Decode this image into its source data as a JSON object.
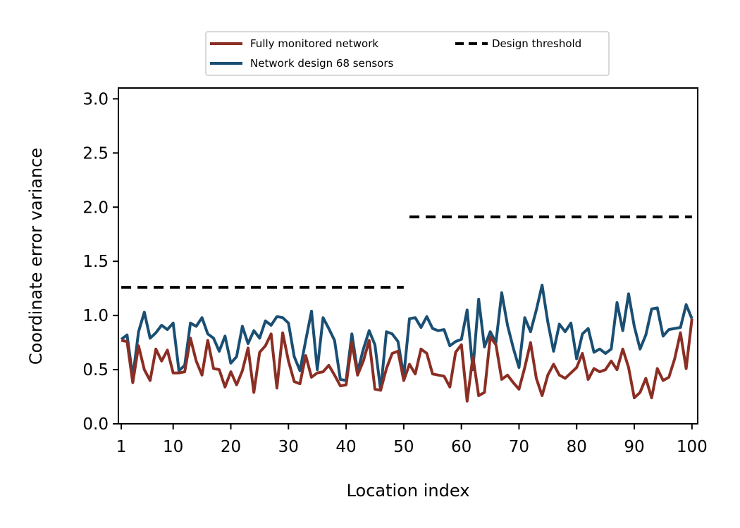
{
  "chart_data": {
    "type": "line",
    "xlabel": "Location index",
    "ylabel": "Coordinate error variance",
    "xlim": [
      0.5,
      101
    ],
    "ylim": [
      0.0,
      3.1
    ],
    "xticks": [
      1,
      10,
      20,
      30,
      40,
      50,
      60,
      70,
      80,
      90,
      100
    ],
    "yticks": [
      0.0,
      0.5,
      1.0,
      1.5,
      2.0,
      2.5,
      3.0
    ],
    "ytick_labels": [
      "0.0",
      "0.5",
      "1.0",
      "1.5",
      "2.0",
      "2.5",
      "3.0"
    ],
    "grid": false,
    "legend_position": "top-center, above plot",
    "x": [
      1,
      2,
      3,
      4,
      5,
      6,
      7,
      8,
      9,
      10,
      11,
      12,
      13,
      14,
      15,
      16,
      17,
      18,
      19,
      20,
      21,
      22,
      23,
      24,
      25,
      26,
      27,
      28,
      29,
      30,
      31,
      32,
      33,
      34,
      35,
      36,
      37,
      38,
      39,
      40,
      41,
      42,
      43,
      44,
      45,
      46,
      47,
      48,
      49,
      50,
      51,
      52,
      53,
      54,
      55,
      56,
      57,
      58,
      59,
      60,
      61,
      62,
      63,
      64,
      65,
      66,
      67,
      68,
      69,
      70,
      71,
      72,
      73,
      74,
      75,
      76,
      77,
      78,
      79,
      80,
      81,
      82,
      83,
      84,
      85,
      86,
      87,
      88,
      89,
      90,
      91,
      92,
      93,
      94,
      95,
      96,
      97,
      98,
      99,
      100
    ],
    "series": [
      {
        "name": "Fully monitored network",
        "color": "#8b2e24",
        "style": "solid",
        "values": [
          0.77,
          0.76,
          0.38,
          0.72,
          0.5,
          0.4,
          0.69,
          0.58,
          0.68,
          0.47,
          0.47,
          0.48,
          0.79,
          0.58,
          0.45,
          0.77,
          0.51,
          0.5,
          0.34,
          0.48,
          0.36,
          0.49,
          0.7,
          0.29,
          0.66,
          0.72,
          0.83,
          0.33,
          0.84,
          0.58,
          0.39,
          0.37,
          0.63,
          0.43,
          0.47,
          0.48,
          0.54,
          0.45,
          0.35,
          0.36,
          0.75,
          0.45,
          0.58,
          0.77,
          0.32,
          0.31,
          0.51,
          0.65,
          0.67,
          0.4,
          0.55,
          0.46,
          0.69,
          0.65,
          0.46,
          0.45,
          0.44,
          0.34,
          0.66,
          0.73,
          0.21,
          0.62,
          0.26,
          0.29,
          0.8,
          0.73,
          0.41,
          0.45,
          0.38,
          0.32,
          0.52,
          0.75,
          0.42,
          0.26,
          0.45,
          0.55,
          0.45,
          0.42,
          0.47,
          0.52,
          0.65,
          0.41,
          0.51,
          0.48,
          0.5,
          0.58,
          0.5,
          0.69,
          0.52,
          0.24,
          0.29,
          0.42,
          0.24,
          0.51,
          0.4,
          0.43,
          0.6,
          0.84,
          0.51,
          0.97
        ]
      },
      {
        "name": "Network design 68 sensors",
        "color": "#1a4f73",
        "style": "solid",
        "values": [
          0.78,
          0.82,
          0.43,
          0.85,
          1.03,
          0.79,
          0.84,
          0.91,
          0.87,
          0.93,
          0.49,
          0.54,
          0.93,
          0.9,
          0.98,
          0.83,
          0.79,
          0.67,
          0.81,
          0.56,
          0.62,
          0.9,
          0.74,
          0.86,
          0.79,
          0.95,
          0.91,
          0.99,
          0.98,
          0.93,
          0.62,
          0.49,
          0.77,
          1.04,
          0.5,
          0.98,
          0.88,
          0.77,
          0.41,
          0.4,
          0.83,
          0.48,
          0.69,
          0.86,
          0.73,
          0.31,
          0.85,
          0.83,
          0.76,
          0.44,
          0.97,
          0.98,
          0.89,
          0.99,
          0.88,
          0.86,
          0.87,
          0.72,
          0.76,
          0.78,
          1.05,
          0.5,
          1.15,
          0.71,
          0.85,
          0.75,
          1.21,
          0.91,
          0.7,
          0.52,
          0.98,
          0.85,
          1.05,
          1.28,
          0.94,
          0.67,
          0.92,
          0.85,
          0.93,
          0.6,
          0.83,
          0.88,
          0.66,
          0.69,
          0.65,
          0.69,
          1.12,
          0.86,
          1.2,
          0.9,
          0.69,
          0.82,
          1.06,
          1.07,
          0.81,
          0.87,
          0.88,
          0.89,
          1.1,
          0.97
        ]
      },
      {
        "name": "Design threshold",
        "color": "#000000",
        "style": "dashed",
        "segments": [
          {
            "x": [
              1,
              50
            ],
            "value": 1.26
          },
          {
            "x": [
              51,
              100
            ],
            "value": 1.91
          }
        ]
      }
    ]
  }
}
